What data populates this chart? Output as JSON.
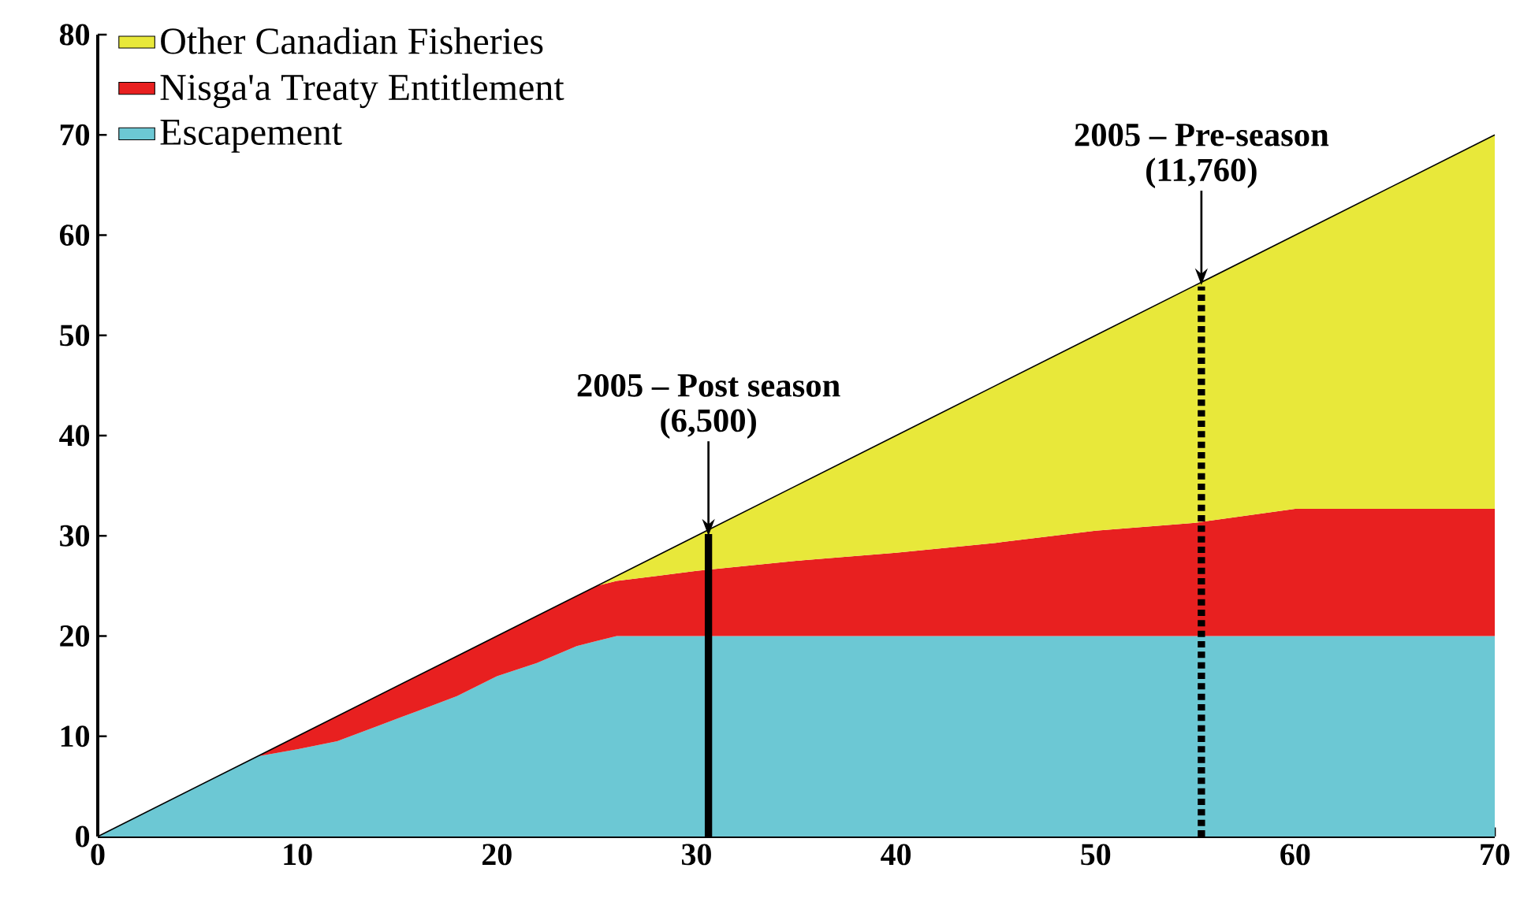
{
  "chart_data": {
    "type": "area",
    "stacked": true,
    "x": [
      0,
      8,
      10,
      12,
      14,
      16,
      18,
      20,
      22,
      24,
      25,
      26,
      28,
      30,
      35,
      40,
      45,
      50,
      55,
      60,
      65,
      70
    ],
    "series": [
      {
        "name": "Escapement",
        "color": "#6cc8d4",
        "values": [
          0,
          8,
          8.7,
          9.5,
          11,
          12.5,
          14,
          16,
          17.3,
          19,
          19.5,
          20,
          20,
          20,
          20,
          20,
          20,
          20,
          20,
          20,
          20,
          20
        ]
      },
      {
        "name": "Nisga'a Treaty Entitlement",
        "color": "#e82020",
        "values": [
          0,
          0,
          1.3,
          2.5,
          3,
          3.5,
          4,
          4,
          4.7,
          5,
          5.5,
          5.5,
          6,
          6.5,
          7.5,
          8.3,
          9.3,
          10.5,
          11.3,
          12.7,
          12.7,
          12.7
        ]
      },
      {
        "name": "Other Canadian Fisheries",
        "color": "#e8e83a",
        "values": [
          0,
          0,
          0,
          0,
          0,
          0,
          0,
          0,
          0,
          0,
          0,
          0.5,
          2,
          3.5,
          7.5,
          11.7,
          15.7,
          19.5,
          23.7,
          27.3,
          32.3,
          37.3
        ]
      }
    ],
    "ref_lines": [
      {
        "axis": "x",
        "value": 30.6,
        "color": "#000000",
        "line_style": "solid"
      },
      {
        "axis": "x",
        "value": 55.3,
        "color": "#000000",
        "line_style": "dotted"
      }
    ],
    "annotations": [
      "2005 – Post season",
      {
        "text": "(6,500)",
        "x": 30.6,
        "y": 30
      },
      "2005 – Pre-season",
      {
        "text": "(11,760)",
        "x": 55.3,
        "y": 55
      }
    ],
    "xlim": [
      0,
      70
    ],
    "ylim": [
      0,
      80
    ],
    "xticks": [
      0,
      10,
      20,
      30,
      40,
      50,
      60,
      70
    ],
    "yticks": [
      0,
      10,
      20,
      30,
      40,
      50,
      60,
      70,
      80
    ],
    "grid": false,
    "legend": "top left",
    "marker": "none"
  }
}
